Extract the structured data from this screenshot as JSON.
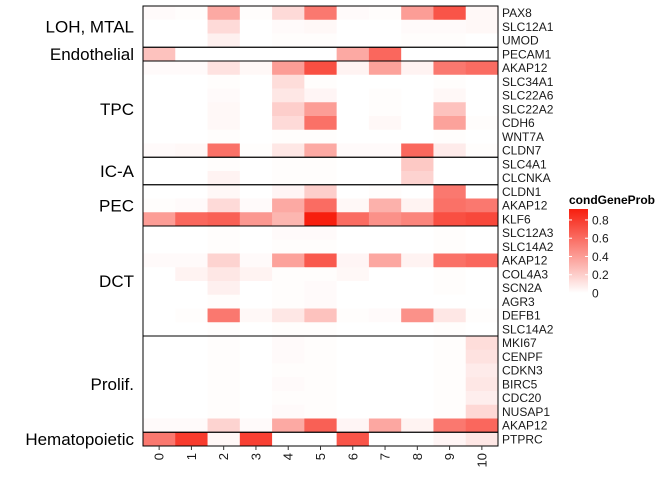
{
  "chart_data": {
    "type": "heatmap",
    "x_categories": [
      "0",
      "1",
      "2",
      "3",
      "4",
      "5",
      "6",
      "7",
      "8",
      "9",
      "10"
    ],
    "genes": [
      "PAX8",
      "SLC12A1",
      "UMOD",
      "PECAM1",
      "AKAP12",
      "SLC34A1",
      "SLC22A6",
      "SLC22A2",
      "CDH6",
      "WNT7A",
      "CLDN7",
      "SLC4A1",
      "CLCNKA",
      "CLDN1",
      "AKAP12",
      "KLF6",
      "SLC12A3",
      "SLC14A2",
      "AKAP12",
      "COL4A3",
      "SCN2A",
      "AGR3",
      "DEFB1",
      "SLC14A2",
      "MKI67",
      "CENPF",
      "CDKN3",
      "BIRC5",
      "CDC20",
      "NUSAP1",
      "AKAP12",
      "PTPRC"
    ],
    "values": [
      [
        0.02,
        0.01,
        0.35,
        0.01,
        0.15,
        0.55,
        0.02,
        0.01,
        0.4,
        0.7,
        0.03
      ],
      [
        0.0,
        0.0,
        0.15,
        0.0,
        0.02,
        0.03,
        0.0,
        0.0,
        0.02,
        0.02,
        0.03
      ],
      [
        0.0,
        0.0,
        0.06,
        0.0,
        0.01,
        0.01,
        0.0,
        0.0,
        0.01,
        0.01,
        0.0
      ],
      [
        0.25,
        0.0,
        0.0,
        0.0,
        0.0,
        0.0,
        0.35,
        0.62,
        0.0,
        0.0,
        0.0
      ],
      [
        0.02,
        0.02,
        0.12,
        0.03,
        0.4,
        0.72,
        0.05,
        0.38,
        0.05,
        0.55,
        0.6
      ],
      [
        0.0,
        0.0,
        0.01,
        0.0,
        0.14,
        0.01,
        0.0,
        0.0,
        0.0,
        0.01,
        0.0
      ],
      [
        0.0,
        0.0,
        0.02,
        0.0,
        0.1,
        0.04,
        0.0,
        0.01,
        0.0,
        0.03,
        0.0
      ],
      [
        0.0,
        0.0,
        0.03,
        0.0,
        0.2,
        0.4,
        0.0,
        0.01,
        0.0,
        0.25,
        0.0
      ],
      [
        0.0,
        0.0,
        0.03,
        0.0,
        0.15,
        0.58,
        0.0,
        0.03,
        0.0,
        0.38,
        0.01
      ],
      [
        0.0,
        0.0,
        0.01,
        0.0,
        0.01,
        0.01,
        0.0,
        0.0,
        0.0,
        0.01,
        0.0
      ],
      [
        0.02,
        0.03,
        0.58,
        0.01,
        0.1,
        0.35,
        0.02,
        0.02,
        0.62,
        0.08,
        0.01
      ],
      [
        0.0,
        0.0,
        0.01,
        0.0,
        0.01,
        0.01,
        0.0,
        0.0,
        0.22,
        0.0,
        0.0
      ],
      [
        0.0,
        0.0,
        0.05,
        0.0,
        0.01,
        0.01,
        0.0,
        0.0,
        0.18,
        0.0,
        0.0
      ],
      [
        0.0,
        0.0,
        0.03,
        0.0,
        0.04,
        0.2,
        0.0,
        0.01,
        0.0,
        0.55,
        0.0
      ],
      [
        0.01,
        0.02,
        0.15,
        0.02,
        0.35,
        0.6,
        0.03,
        0.32,
        0.05,
        0.58,
        0.55
      ],
      [
        0.4,
        0.62,
        0.65,
        0.42,
        0.3,
        0.92,
        0.6,
        0.45,
        0.5,
        0.72,
        0.75
      ],
      [
        0.0,
        0.0,
        0.01,
        0.0,
        0.02,
        0.02,
        0.0,
        0.0,
        0.0,
        0.01,
        0.0
      ],
      [
        0.0,
        0.0,
        0.01,
        0.0,
        0.01,
        0.01,
        0.0,
        0.0,
        0.0,
        0.01,
        0.0
      ],
      [
        0.02,
        0.02,
        0.18,
        0.02,
        0.38,
        0.68,
        0.04,
        0.36,
        0.05,
        0.58,
        0.62
      ],
      [
        0.0,
        0.05,
        0.1,
        0.05,
        0.01,
        0.01,
        0.03,
        0.0,
        0.0,
        0.01,
        0.0
      ],
      [
        0.0,
        0.0,
        0.06,
        0.0,
        0.01,
        0.02,
        0.0,
        0.0,
        0.0,
        0.01,
        0.0
      ],
      [
        0.0,
        0.0,
        0.01,
        0.0,
        0.01,
        0.02,
        0.0,
        0.0,
        0.0,
        0.0,
        0.0
      ],
      [
        0.0,
        0.01,
        0.55,
        0.03,
        0.1,
        0.25,
        0.01,
        0.02,
        0.45,
        0.1,
        0.01
      ],
      [
        0.0,
        0.0,
        0.01,
        0.0,
        0.01,
        0.01,
        0.0,
        0.0,
        0.0,
        0.01,
        0.0
      ],
      [
        0.0,
        0.0,
        0.01,
        0.0,
        0.02,
        0.01,
        0.0,
        0.0,
        0.0,
        0.01,
        0.14
      ],
      [
        0.0,
        0.0,
        0.01,
        0.0,
        0.02,
        0.01,
        0.0,
        0.0,
        0.0,
        0.01,
        0.12
      ],
      [
        0.0,
        0.0,
        0.01,
        0.0,
        0.01,
        0.01,
        0.0,
        0.0,
        0.0,
        0.01,
        0.08
      ],
      [
        0.0,
        0.0,
        0.01,
        0.0,
        0.02,
        0.01,
        0.0,
        0.0,
        0.0,
        0.01,
        0.1
      ],
      [
        0.0,
        0.0,
        0.01,
        0.0,
        0.01,
        0.01,
        0.0,
        0.0,
        0.0,
        0.01,
        0.07
      ],
      [
        0.0,
        0.0,
        0.01,
        0.0,
        0.02,
        0.01,
        0.0,
        0.0,
        0.0,
        0.01,
        0.16
      ],
      [
        0.02,
        0.02,
        0.18,
        0.02,
        0.35,
        0.65,
        0.04,
        0.36,
        0.05,
        0.55,
        0.62
      ],
      [
        0.55,
        0.8,
        0.03,
        0.78,
        0.0,
        0.0,
        0.7,
        0.0,
        0.0,
        0.04,
        0.1
      ]
    ],
    "groups": [
      {
        "label": "LOH, MTAL",
        "count": 3
      },
      {
        "label": "Endothelial",
        "count": 1
      },
      {
        "label": "TPC",
        "count": 7
      },
      {
        "label": "IC-A",
        "count": 2
      },
      {
        "label": "PEC",
        "count": 3
      },
      {
        "label": "DCT",
        "count": 8
      },
      {
        "label": "Prolif.",
        "count": 7
      },
      {
        "label": "Hematopoietic",
        "count": 1
      }
    ],
    "legend": {
      "title": "condGeneProb",
      "ticks": [
        "0.8",
        "0.6",
        "0.4",
        "0.2",
        "0"
      ],
      "tick_values": [
        0.8,
        0.6,
        0.4,
        0.2,
        0
      ],
      "range": [
        0,
        0.92
      ],
      "placement": "right"
    },
    "color_low": "#ffffff",
    "color_high": "#f71e0e"
  }
}
